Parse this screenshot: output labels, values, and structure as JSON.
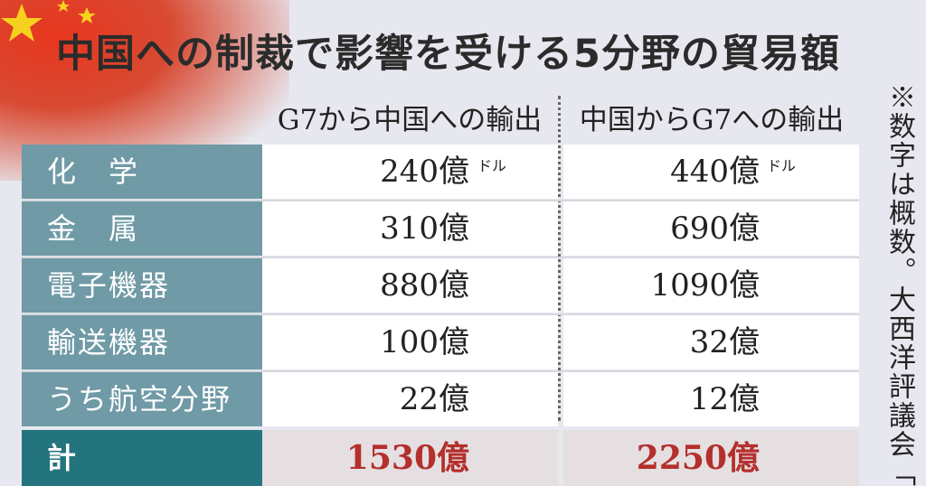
{
  "title": "中国への制裁で影響を受ける5分野の貿易額",
  "note": "※数字は概数。大西洋評議会「・",
  "colors": {
    "label_bg": "#6f9aa6",
    "total_label_bg": "#24747e",
    "total_value": "#b3302d",
    "flag_red": "#e8361f",
    "flag_star": "#f6d21f"
  },
  "chart_data": {
    "type": "table",
    "title": "中国への制裁で影響を受ける5分野の貿易額",
    "columns": [
      "G7から中国への輸出",
      "中国からG7への輸出"
    ],
    "rows": [
      {
        "label": "化　学",
        "g7_to_china": "240億",
        "china_to_g7": "440億",
        "unit": "ドル"
      },
      {
        "label": "金　属",
        "g7_to_china": "310億",
        "china_to_g7": "690億"
      },
      {
        "label": "電子機器",
        "g7_to_china": "880億",
        "china_to_g7": "1090億"
      },
      {
        "label": "輸送機器",
        "g7_to_china": "100億",
        "china_to_g7": "32億"
      },
      {
        "label": "うち航空分野",
        "g7_to_china": "22億",
        "china_to_g7": "12億"
      }
    ],
    "total": {
      "label": "計",
      "g7_to_china": "1530億",
      "china_to_g7": "2250億"
    }
  }
}
